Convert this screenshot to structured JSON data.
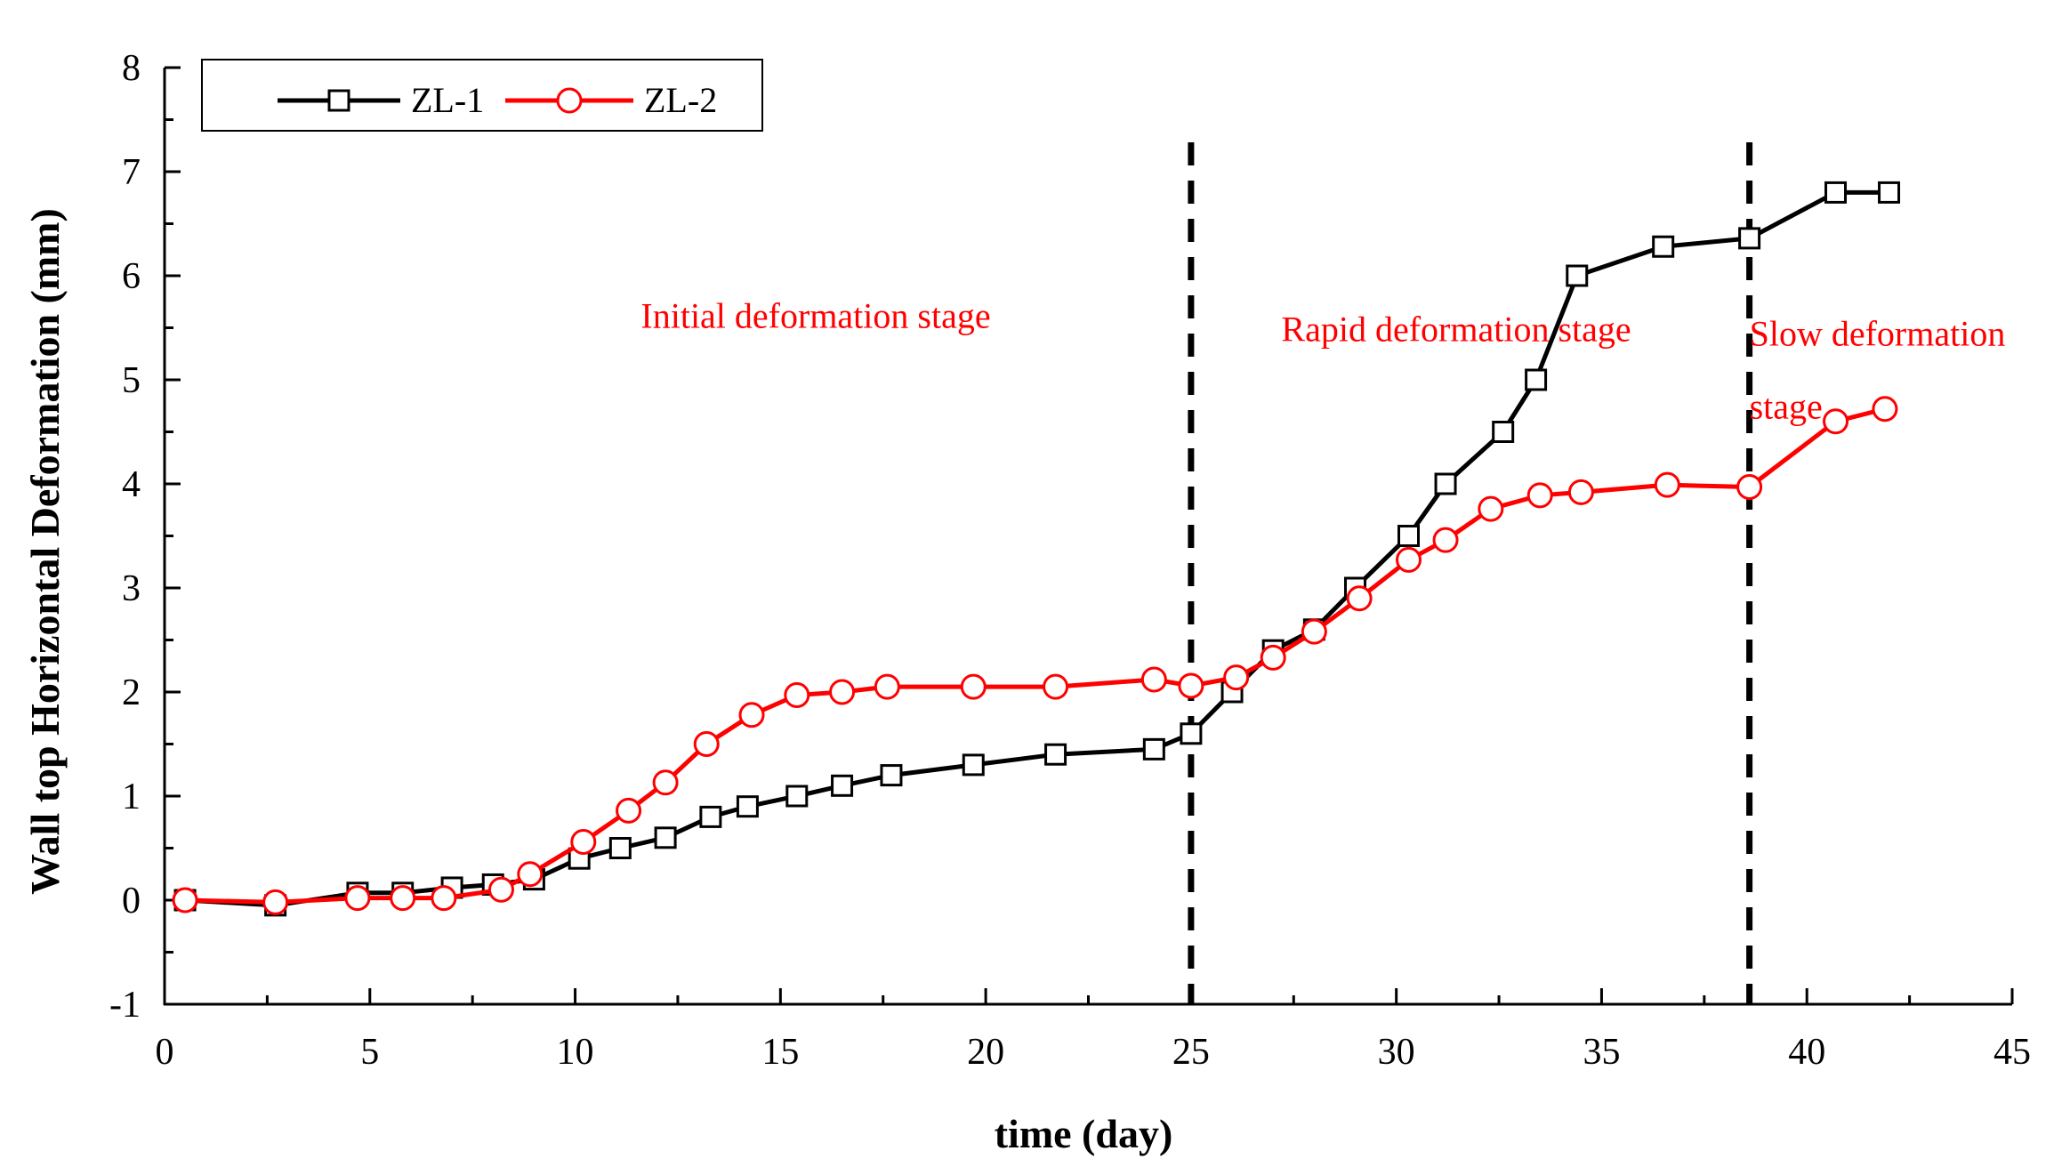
{
  "chart_data": {
    "type": "line",
    "title": "",
    "xlabel": "time (day)",
    "ylabel": "Wall top Horizontal Deformation (mm)",
    "xlim": [
      0,
      45
    ],
    "ylim": [
      -1,
      8
    ],
    "xticks": [
      "0",
      "5",
      "10",
      "15",
      "20",
      "25",
      "30",
      "35",
      "40",
      "45"
    ],
    "yticks": [
      "-1",
      "0",
      "1",
      "2",
      "3",
      "4",
      "5",
      "6",
      "7",
      "8"
    ],
    "grid": false,
    "legend_position": "top-left",
    "series": [
      {
        "name": "ZL-1",
        "color": "#000000",
        "marker": "square",
        "x": [
          0.5,
          2.7,
          4.7,
          5.8,
          7.0,
          8.0,
          9.0,
          10.1,
          11.1,
          12.2,
          13.3,
          14.2,
          15.4,
          16.5,
          17.7,
          19.7,
          21.7,
          24.1,
          25.0,
          26.0,
          27.0,
          28.0,
          29.0,
          30.3,
          31.2,
          32.6,
          33.4,
          34.4,
          36.5,
          38.6,
          40.7,
          42.0
        ],
        "y": [
          0.0,
          -0.05,
          0.07,
          0.07,
          0.12,
          0.15,
          0.2,
          0.4,
          0.5,
          0.6,
          0.8,
          0.9,
          1.0,
          1.1,
          1.2,
          1.3,
          1.4,
          1.45,
          1.6,
          2.0,
          2.4,
          2.6,
          3.0,
          3.5,
          4.0,
          4.5,
          5.0,
          6.0,
          6.28,
          6.36,
          6.8,
          6.8
        ]
      },
      {
        "name": "ZL-2",
        "color": "#ff0000",
        "marker": "circle",
        "x": [
          0.5,
          2.7,
          4.7,
          5.8,
          6.8,
          8.2,
          8.9,
          10.2,
          11.3,
          12.2,
          13.2,
          14.3,
          15.4,
          16.5,
          17.6,
          19.7,
          21.7,
          24.1,
          25.0,
          26.1,
          27.0,
          28.0,
          29.1,
          30.3,
          31.2,
          32.3,
          33.5,
          34.5,
          36.6,
          38.6,
          40.7,
          41.9
        ],
        "y": [
          0.0,
          -0.02,
          0.02,
          0.02,
          0.02,
          0.1,
          0.25,
          0.56,
          0.86,
          1.13,
          1.5,
          1.78,
          1.97,
          2.0,
          2.05,
          2.05,
          2.05,
          2.12,
          2.06,
          2.14,
          2.33,
          2.58,
          2.9,
          3.27,
          3.46,
          3.76,
          3.89,
          3.92,
          3.99,
          3.97,
          4.6,
          4.72
        ]
      }
    ],
    "vlines": [
      25.0,
      38.6
    ],
    "annotations": [
      {
        "lines": [
          "Initial deformation stage"
        ],
        "x": 11.6,
        "y": 5.5,
        "color": "#ff0000"
      },
      {
        "lines": [
          "Rapid deformation stage"
        ],
        "x": 27.2,
        "y": 5.37,
        "color": "#ff0000"
      },
      {
        "lines": [
          "Slow deformation",
          "stage"
        ],
        "x": 38.6,
        "y": 5.33,
        "color": "#ff0000"
      }
    ]
  }
}
